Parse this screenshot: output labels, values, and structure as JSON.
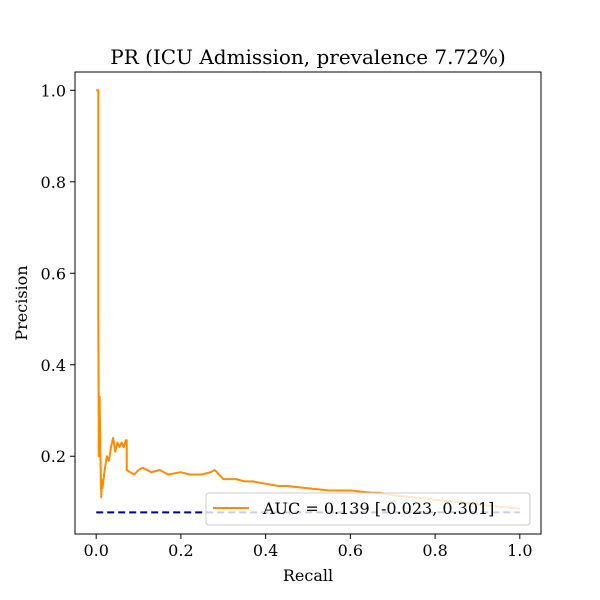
{
  "chart_data": {
    "type": "line",
    "title": "PR (ICU Admission, prevalence 7.72%)",
    "xlabel": "Recall",
    "ylabel": "Precision",
    "xlim": [
      -0.05,
      1.05
    ],
    "ylim": [
      0.03,
      1.04
    ],
    "x_ticks": [
      0.0,
      0.2,
      0.4,
      0.6,
      0.8,
      1.0
    ],
    "x_tick_labels": [
      "0.0",
      "0.2",
      "0.4",
      "0.6",
      "0.8",
      "1.0"
    ],
    "y_ticks": [
      0.2,
      0.4,
      0.6,
      0.8,
      1.0
    ],
    "y_tick_labels": [
      "0.2",
      "0.4",
      "0.6",
      "0.8",
      "1.0"
    ],
    "grid": false,
    "legend_position": "lower right",
    "series": [
      {
        "name": "AUC = 0.139 [-0.023, 0.301]",
        "color": "#ff8c00",
        "style": "solid",
        "x": [
          0.0,
          0.005,
          0.005,
          0.006,
          0.006,
          0.008,
          0.008,
          0.01,
          0.012,
          0.012,
          0.015,
          0.02,
          0.025,
          0.03,
          0.035,
          0.04,
          0.045,
          0.05,
          0.055,
          0.06,
          0.065,
          0.07,
          0.072,
          0.072,
          0.08,
          0.09,
          0.1,
          0.11,
          0.12,
          0.13,
          0.15,
          0.17,
          0.2,
          0.22,
          0.25,
          0.27,
          0.28,
          0.3,
          0.33,
          0.35,
          0.37,
          0.4,
          0.43,
          0.45,
          0.5,
          0.55,
          0.6,
          0.65,
          0.67,
          0.7,
          0.75,
          0.8,
          0.85,
          0.9,
          0.95,
          1.0
        ],
        "y": [
          1.0,
          1.0,
          0.5,
          0.28,
          0.2,
          0.2,
          0.33,
          0.2,
          0.11,
          0.15,
          0.13,
          0.17,
          0.2,
          0.19,
          0.22,
          0.24,
          0.21,
          0.23,
          0.22,
          0.23,
          0.22,
          0.235,
          0.235,
          0.17,
          0.165,
          0.16,
          0.17,
          0.175,
          0.17,
          0.165,
          0.17,
          0.16,
          0.165,
          0.16,
          0.16,
          0.165,
          0.17,
          0.15,
          0.15,
          0.145,
          0.145,
          0.14,
          0.135,
          0.135,
          0.13,
          0.125,
          0.125,
          0.12,
          0.12,
          0.115,
          0.11,
          0.105,
          0.1,
          0.095,
          0.09,
          0.085
        ]
      },
      {
        "name": "",
        "color": "#00008b",
        "style": "dashed",
        "x": [
          0.0,
          1.0
        ],
        "y": [
          0.0772,
          0.0772
        ]
      }
    ]
  }
}
